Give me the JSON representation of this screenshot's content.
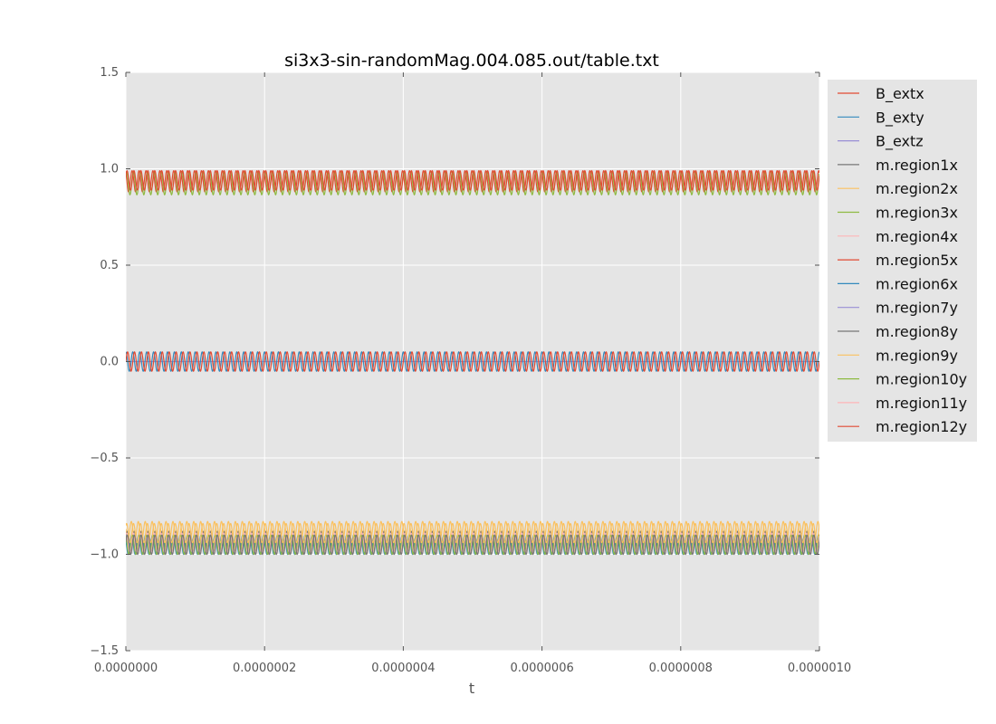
{
  "chart_data": {
    "type": "line",
    "title": "si3x3-sin-randomMag.004.085.out/table.txt",
    "xlabel": "t",
    "ylabel": "",
    "xlim": [
      0,
      1e-06
    ],
    "ylim": [
      -1.5,
      1.5
    ],
    "x_ticks": [
      "0.0000000",
      "0.0000002",
      "0.0000004",
      "0.0000006",
      "0.0000008",
      "0.0000010"
    ],
    "x_tick_values": [
      0,
      2e-07,
      4e-07,
      6e-07,
      8e-07,
      1e-06
    ],
    "y_ticks": [
      "−1.5",
      "−1.0",
      "−0.5",
      "0.0",
      "0.5",
      "1.0",
      "1.5"
    ],
    "y_tick_values": [
      -1.5,
      -1.0,
      -0.5,
      0.0,
      0.5,
      1.0,
      1.5
    ],
    "grid": true,
    "legend_position": "outside-right",
    "cycles": 100,
    "series": [
      {
        "name": "B_extx",
        "color": "#E24A33",
        "center": 0.0,
        "amplitude": 0.05,
        "phase": 0.0
      },
      {
        "name": "B_exty",
        "color": "#348ABD",
        "center": 0.0,
        "amplitude": 0.05,
        "phase": 1.5708
      },
      {
        "name": "B_extz",
        "color": "#988ED5",
        "center": 0.0,
        "amplitude": 0.0,
        "phase": 0.0
      },
      {
        "name": "m.region1x",
        "color": "#777777",
        "center": -0.95,
        "amplitude": 0.05,
        "phase": 0.3
      },
      {
        "name": "m.region2x",
        "color": "#FBC15E",
        "center": -0.89,
        "amplitude": 0.05,
        "phase": 0.9
      },
      {
        "name": "m.region3x",
        "color": "#8EBA42",
        "center": -0.95,
        "amplitude": 0.05,
        "phase": 2.0
      },
      {
        "name": "m.region4x",
        "color": "#FFB5B8",
        "center": -0.94,
        "amplitude": 0.05,
        "phase": 1.2
      },
      {
        "name": "m.region5x",
        "color": "#E24A33",
        "center": 0.94,
        "amplitude": 0.05,
        "phase": 0.5
      },
      {
        "name": "m.region6x",
        "color": "#348ABD",
        "center": -0.95,
        "amplitude": 0.05,
        "phase": 2.6
      },
      {
        "name": "m.region7y",
        "color": "#988ED5",
        "center": -0.95,
        "amplitude": 0.05,
        "phase": 1.7
      },
      {
        "name": "m.region8y",
        "color": "#777777",
        "center": -0.93,
        "amplitude": 0.05,
        "phase": 0.1
      },
      {
        "name": "m.region9y",
        "color": "#FBC15E",
        "center": -0.88,
        "amplitude": 0.05,
        "phase": 2.9
      },
      {
        "name": "m.region10y",
        "color": "#8EBA42",
        "center": 0.925,
        "amplitude": 0.06,
        "phase": 1.0
      },
      {
        "name": "m.region11y",
        "color": "#FFB5B8",
        "center": -0.95,
        "amplitude": 0.05,
        "phase": 0.7
      },
      {
        "name": "m.region12y",
        "color": "#E24A33",
        "center": 0.935,
        "amplitude": 0.055,
        "phase": 2.2
      }
    ]
  }
}
